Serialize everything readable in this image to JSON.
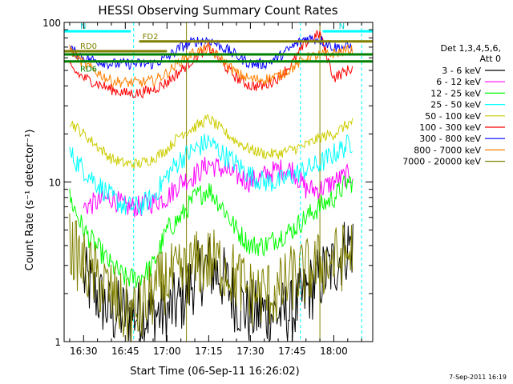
{
  "chart_data": {
    "type": "line",
    "title": "HESSI Observing Summary Count Rates",
    "xlabel": "Start Time (06-Sep-11 16:26:02)",
    "ylabel": "Count Rate (s⁻¹ detector⁻¹)",
    "yscale": "log",
    "ylim": [
      1,
      100
    ],
    "xlim_minutes": [
      -7,
      104
    ],
    "x_ticks": [
      {
        "minute": 0,
        "label": "16:30"
      },
      {
        "minute": 15,
        "label": "16:45"
      },
      {
        "minute": 30,
        "label": "17:00"
      },
      {
        "minute": 45,
        "label": "17:15"
      },
      {
        "minute": 60,
        "label": "17:30"
      },
      {
        "minute": 75,
        "label": "17:45"
      },
      {
        "minute": 90,
        "label": "18:00"
      }
    ],
    "y_ticks": [
      {
        "value": 1,
        "label": "1"
      },
      {
        "value": 10,
        "label": "10"
      },
      {
        "value": 100,
        "label": "100"
      }
    ],
    "legend_header": [
      "Det 1,3,4,5,6,",
      "Att 0"
    ],
    "legend_position": "right",
    "timestamp": "7-Sep-2011 16:19",
    "series": [
      {
        "name": "3 - 6 keV",
        "color": "#000000",
        "x": [
          0,
          10,
          15,
          20,
          30,
          35,
          40,
          45,
          50,
          55,
          60,
          65,
          70,
          75,
          80,
          85,
          90,
          95,
          97
        ],
        "values": [
          2.5,
          1.5,
          1.5,
          1.5,
          1.5,
          1.8,
          2.5,
          3,
          2.5,
          1.8,
          1.5,
          1.5,
          1.5,
          1.5,
          2,
          2.5,
          3,
          4,
          4
        ]
      },
      {
        "name": "6 - 12 keV",
        "color": "#ff00ff",
        "x": [
          0,
          10,
          15,
          20,
          30,
          35,
          40,
          45,
          50,
          55,
          60,
          65,
          70,
          75,
          80,
          85,
          90,
          95,
          97
        ],
        "values": [
          7,
          8,
          7,
          7,
          8,
          10,
          11,
          13,
          12,
          11,
          10,
          11,
          12,
          12,
          9,
          9,
          10,
          11,
          11
        ]
      },
      {
        "name": "12 - 25 keV",
        "color": "#00ff00",
        "x": [
          -5,
          0,
          10,
          15,
          20,
          25,
          30,
          35,
          40,
          45,
          50,
          55,
          60,
          65,
          70,
          75,
          80,
          85,
          90,
          95,
          97
        ],
        "values": [
          8,
          5,
          3,
          2.5,
          2.5,
          3,
          5,
          6,
          8,
          9,
          7,
          5,
          4,
          4,
          4.5,
          5,
          6,
          7,
          8,
          10,
          10
        ]
      },
      {
        "name": "25 - 50 keV",
        "color": "#00ffff",
        "x": [
          -5,
          0,
          10,
          15,
          20,
          25,
          30,
          35,
          40,
          45,
          50,
          55,
          60,
          65,
          70,
          75,
          80,
          85,
          90,
          95,
          97
        ],
        "values": [
          15,
          12,
          8,
          7,
          7,
          8,
          11,
          14,
          16,
          18,
          15,
          13,
          11,
          10,
          10,
          11,
          12,
          13,
          15,
          17,
          18
        ]
      },
      {
        "name": "50 - 100 keV",
        "color": "#cccc00",
        "x": [
          -5,
          0,
          10,
          15,
          20,
          25,
          30,
          35,
          40,
          45,
          50,
          55,
          60,
          65,
          70,
          75,
          80,
          85,
          90,
          95,
          97
        ],
        "values": [
          24,
          20,
          14,
          13,
          13,
          14,
          16,
          20,
          22,
          25,
          21,
          18,
          16,
          15,
          15,
          16,
          17,
          19,
          20,
          23,
          24
        ]
      },
      {
        "name": "100 - 300 keV",
        "color": "#ff0000",
        "x": [
          -5,
          0,
          10,
          15,
          20,
          25,
          30,
          35,
          40,
          45,
          50,
          55,
          60,
          65,
          70,
          75,
          80,
          85,
          90,
          95,
          97
        ],
        "values": [
          52,
          45,
          38,
          36,
          36,
          38,
          42,
          50,
          60,
          70,
          55,
          45,
          40,
          40,
          45,
          55,
          75,
          85,
          45,
          50,
          52
        ]
      },
      {
        "name": "300 - 800 keV",
        "color": "#0000ff",
        "x": [
          -5,
          0,
          10,
          15,
          20,
          25,
          30,
          35,
          40,
          45,
          50,
          55,
          60,
          65,
          70,
          75,
          80,
          85,
          90,
          95,
          97
        ],
        "values": [
          68,
          60,
          55,
          55,
          55,
          55,
          60,
          70,
          76,
          78,
          70,
          62,
          55,
          55,
          60,
          70,
          80,
          78,
          70,
          70,
          72
        ]
      },
      {
        "name": "800 - 7000 keV",
        "color": "#ff8000",
        "x": [
          -5,
          0,
          10,
          15,
          20,
          25,
          30,
          35,
          40,
          45,
          50,
          55,
          60,
          65,
          70,
          75,
          80,
          85,
          90,
          95,
          97
        ],
        "values": [
          68,
          55,
          43,
          42,
          42,
          43,
          48,
          58,
          65,
          68,
          58,
          48,
          44,
          44,
          46,
          52,
          60,
          62,
          64,
          67,
          68
        ]
      },
      {
        "name": "7000 - 20000 keV",
        "color": "#808000",
        "x": [
          -5,
          0,
          10,
          15,
          20,
          25,
          30,
          35,
          40,
          45,
          50,
          55,
          60,
          65,
          70,
          75,
          80,
          85,
          90,
          95,
          97
        ],
        "values": [
          4,
          3,
          2,
          1.5,
          1.5,
          2,
          2.5,
          2.5,
          3,
          3.2,
          3,
          2.5,
          2,
          2,
          2,
          2.5,
          2.7,
          3,
          3.2,
          3.5,
          3.8
        ]
      }
    ],
    "flag_bars": [
      {
        "label": "N",
        "color": "#00ffff",
        "x": [
          -7,
          17
        ],
        "value": 88
      },
      {
        "label": "N",
        "color": "#00ffff",
        "x": [
          86,
          104
        ],
        "value": 88
      },
      {
        "label": "FD2",
        "color": "#808000",
        "x": [
          20,
          104
        ],
        "value": 76
      },
      {
        "label": "RD0",
        "color": "#808000",
        "x": [
          -7,
          30
        ],
        "value": 66
      },
      {
        "label": "RD6",
        "color": "#008000",
        "x": [
          -7,
          30
        ],
        "value": 57
      },
      {
        "label": "",
        "color": "#008000",
        "x": [
          30,
          104
        ],
        "value": 57
      },
      {
        "label": "",
        "color": "#008000",
        "x": [
          -7,
          104
        ],
        "value": 63
      }
    ],
    "vertical_markers": [
      {
        "color": "#00ffff",
        "style": "solid",
        "x": -7
      },
      {
        "color": "#00ffff",
        "style": "dashed",
        "x": 18
      },
      {
        "color": "#808000",
        "style": "solid",
        "x": 37
      },
      {
        "color": "#00ffff",
        "style": "dashed",
        "x": 78
      },
      {
        "color": "#808000",
        "style": "solid",
        "x": 85
      },
      {
        "color": "#00ffff",
        "style": "dashed",
        "x": 100
      }
    ]
  }
}
